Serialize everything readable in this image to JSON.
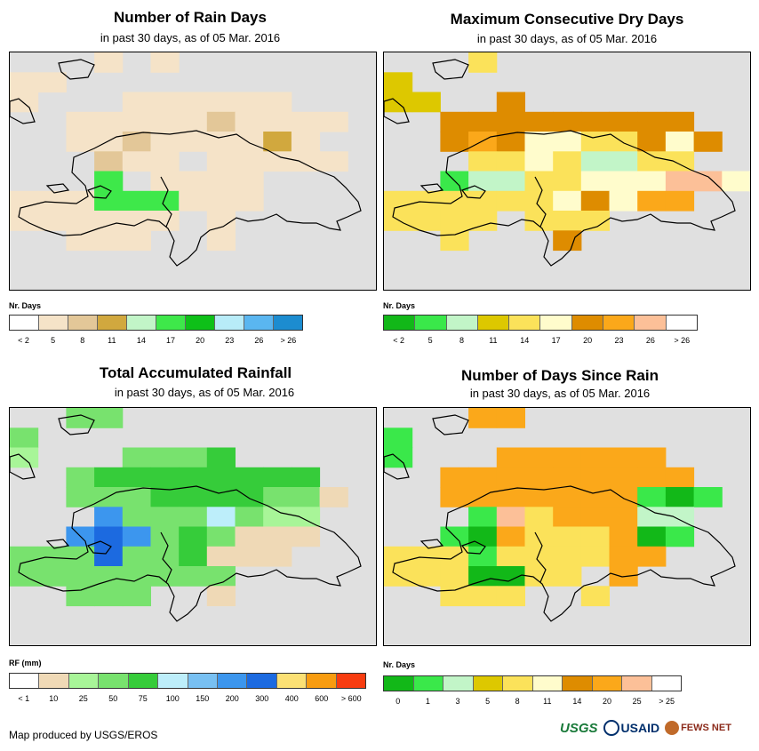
{
  "panels": [
    {
      "id": "rain-days",
      "title": "Number of Rain Days",
      "subtitle": "in past 30 days, as of 05 Mar. 2016",
      "legend_title": "Nr. Days",
      "legend_labels": [
        "< 2",
        "5",
        "8",
        "11",
        "14",
        "17",
        "20",
        "23",
        "26",
        "> 26"
      ],
      "legend_colors": [
        "#ffffff",
        "#f5e3c8",
        "#e3c798",
        "#d1a83e",
        "#c2f5c8",
        "#3ee84a",
        "#0ec018",
        "#b8ecf8",
        "#5ab6f0",
        "#1c8cd0"
      ],
      "grid": [
        "...1b1.......",
        "11...........",
        "1...111111...",
        "..1111121111.",
        "..112111131..",
        "...211f11111.",
        "..b5f1111....",
        "111555111....",
        "111111.1.....",
        "..111..1.....",
        ".............",
        "............."
      ]
    },
    {
      "id": "max-dry",
      "title": "Maximum Consecutive Dry Days",
      "subtitle": "in past 30 days, as of 05 Mar. 2016",
      "legend_title": "Nr. Days",
      "legend_labels": [
        "< 2",
        "5",
        "8",
        "11",
        "14",
        "17",
        "20",
        "23",
        "26",
        "> 26"
      ],
      "legend_colors": [
        "#12b818",
        "#3ae84a",
        "#c2f5c8",
        "#ddc800",
        "#fbe25a",
        "#fffccc",
        "#de8c00",
        "#fba81a",
        "#fcc098",
        "#ffffff"
      ],
      "grid": [
        "...4a........",
        "3............",
        "33..6........",
        "..666666666..",
        "..6765544656.",
        "...44542244..",
        "..12244555885",
        "44444456577..",
        "4444.444.....",
        "..4...6......",
        ".............",
        "............."
      ]
    },
    {
      "id": "total-rain",
      "title": "Total Accumulated Rainfall",
      "subtitle": "in past 30 days, as of 05 Mar. 2016",
      "legend_title": "RF (mm)",
      "legend_labels": [
        "< 1",
        "10",
        "25",
        "50",
        "75",
        "100",
        "150",
        "200",
        "300",
        "400",
        "600",
        "> 600"
      ],
      "legend_colors": [
        "#ffffff",
        "#efd9b6",
        "#a8f598",
        "#78e26e",
        "#36cc3a",
        "#bdeefa",
        "#78c0f2",
        "#3c96ee",
        "#1c6ae0",
        "#fbe074",
        "#f89c10",
        "#f83c10"
      ],
      "grid": [
        "..33.........",
        "3............",
        "2...3334.....",
        "..344444444..",
        "..3334444331.",
        "...73335322..",
        "..787343111..",
        "3338334111...",
        "33333333.....",
        "..333..1.....",
        ".............",
        "............."
      ]
    },
    {
      "id": "since-rain",
      "title": "Number of Days Since Rain",
      "subtitle": "in past 30 days, as of 05 Mar. 2016",
      "legend_title": "Nr. Days",
      "legend_labels": [
        "0",
        "1",
        "3",
        "5",
        "8",
        "11",
        "14",
        "20",
        "25",
        "> 25"
      ],
      "legend_colors": [
        "#12b818",
        "#3ae84a",
        "#c2f5c8",
        "#ddc800",
        "#fbe25a",
        "#fffccc",
        "#de8c00",
        "#fba81a",
        "#fcc098",
        "#ffffff"
      ],
      "grid": [
        "...77........",
        "1............",
        "1...777777...",
        "..777777777..",
        "..7777777101.",
        "...18477722..",
        "..107444701..",
        "4441444477...",
        "4440044.7....",
        "..444..4.....",
        ".............",
        "............."
      ]
    }
  ],
  "credit": "Map produced by USGS/EROS",
  "logos": {
    "usgs": "USGS",
    "usaid": "USAID",
    "fews": "FEWS NET"
  }
}
